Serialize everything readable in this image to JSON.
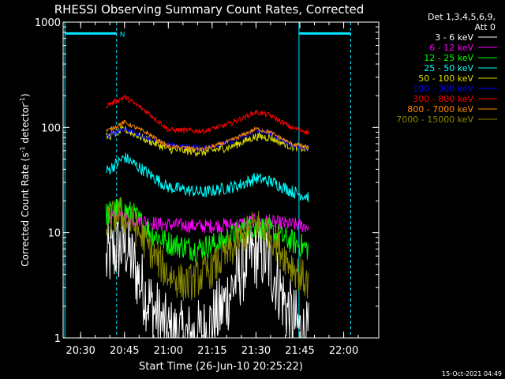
{
  "chart_data": {
    "type": "line",
    "title": "RHESSI Observing Summary Count Rates, Corrected",
    "xlabel": "Start Time (26-Jun-10 20:25:22)",
    "ylabel_main": "Corrected Count Rate (s",
    "ylabel_sup1": "-1",
    "ylabel_mid": " detector",
    "ylabel_sup2": "-1",
    "ylabel_end": ")",
    "y_scale": "log",
    "ylim": [
      1,
      1000
    ],
    "xlim_minutes": [
      20.4,
      22.2
    ],
    "x_ticks": [
      {
        "label": "20:30",
        "value": 20.5
      },
      {
        "label": "20:45",
        "value": 20.75
      },
      {
        "label": "21:00",
        "value": 21.0
      },
      {
        "label": "21:15",
        "value": 21.25
      },
      {
        "label": "21:30",
        "value": 21.5
      },
      {
        "label": "21:45",
        "value": 21.75
      },
      {
        "label": "22:00",
        "value": 22.0
      }
    ],
    "y_ticks": [
      {
        "label": "1",
        "value": 1
      },
      {
        "label": "10",
        "value": 10
      },
      {
        "label": "100",
        "value": 100
      },
      {
        "label": "1000",
        "value": 1000
      }
    ],
    "legend_header": [
      "Det 1,3,4,5,6,9,",
      "Att 0"
    ],
    "legend_placement": "right",
    "series": [
      {
        "name": "3 - 6 keV",
        "color": "#ffffff",
        "knots": [
          [
            20.645,
            5
          ],
          [
            20.66,
            6
          ],
          [
            20.71,
            7
          ],
          [
            20.76,
            7.5
          ],
          [
            20.8,
            5
          ],
          [
            20.86,
            2.8
          ],
          [
            20.92,
            1.8
          ],
          [
            21.0,
            1.1
          ],
          [
            21.1,
            1.0
          ],
          [
            21.2,
            1.1
          ],
          [
            21.3,
            1.8
          ],
          [
            21.4,
            4
          ],
          [
            21.48,
            6.5
          ],
          [
            21.55,
            6
          ],
          [
            21.62,
            3.5
          ],
          [
            21.68,
            1.8
          ],
          [
            21.76,
            1.1
          ],
          [
            21.8,
            1.0
          ]
        ],
        "noise": 0.35
      },
      {
        "name": "6 - 12 keV",
        "color": "#ff00ff",
        "knots": [
          [
            20.645,
            13
          ],
          [
            20.7,
            15
          ],
          [
            20.8,
            13.5
          ],
          [
            20.95,
            12
          ],
          [
            21.2,
            11.5
          ],
          [
            21.4,
            12
          ],
          [
            21.5,
            13
          ],
          [
            21.6,
            12.5
          ],
          [
            21.8,
            11.5
          ]
        ],
        "noise": 0.07
      },
      {
        "name": "12 - 25 keV",
        "color": "#00ff00",
        "knots": [
          [
            20.645,
            15
          ],
          [
            20.72,
            17
          ],
          [
            20.8,
            15
          ],
          [
            20.9,
            10
          ],
          [
            21.0,
            8
          ],
          [
            21.15,
            7
          ],
          [
            21.3,
            8
          ],
          [
            21.45,
            11.5
          ],
          [
            21.55,
            11
          ],
          [
            21.65,
            9
          ],
          [
            21.8,
            7
          ]
        ],
        "noise": 0.12
      },
      {
        "name": "25 - 50 keV",
        "color": "#00ffff",
        "knots": [
          [
            20.645,
            38
          ],
          [
            20.75,
            52
          ],
          [
            20.85,
            40
          ],
          [
            21.0,
            27
          ],
          [
            21.2,
            24
          ],
          [
            21.4,
            28
          ],
          [
            21.5,
            33
          ],
          [
            21.6,
            30
          ],
          [
            21.72,
            24
          ],
          [
            21.8,
            22
          ]
        ],
        "noise": 0.06
      },
      {
        "name": "50 - 100 keV",
        "color": "#dddd00",
        "knots": [
          [
            20.645,
            80
          ],
          [
            20.75,
            96
          ],
          [
            20.88,
            76
          ],
          [
            21.0,
            62
          ],
          [
            21.2,
            58
          ],
          [
            21.35,
            65
          ],
          [
            21.5,
            82
          ],
          [
            21.58,
            80
          ],
          [
            21.7,
            66
          ],
          [
            21.8,
            62
          ]
        ],
        "noise": 0.04
      },
      {
        "name": "100 - 300 keV",
        "color": "#0000ff",
        "knots": [
          [
            20.645,
            82
          ],
          [
            20.75,
            97
          ],
          [
            20.88,
            80
          ],
          [
            21.0,
            68
          ],
          [
            21.2,
            64
          ],
          [
            21.35,
            72
          ],
          [
            21.5,
            93
          ],
          [
            21.58,
            88
          ],
          [
            21.7,
            68
          ],
          [
            21.8,
            63
          ]
        ],
        "noise": 0.025
      },
      {
        "name": "300 - 800 keV",
        "color": "#ff0000",
        "knots": [
          [
            20.645,
            160
          ],
          [
            20.75,
            195
          ],
          [
            20.88,
            140
          ],
          [
            21.0,
            95
          ],
          [
            21.2,
            92
          ],
          [
            21.35,
            108
          ],
          [
            21.5,
            140
          ],
          [
            21.58,
            130
          ],
          [
            21.7,
            100
          ],
          [
            21.8,
            90
          ]
        ],
        "noise": 0.025
      },
      {
        "name": "800 - 7000 keV",
        "color": "#ff8800",
        "knots": [
          [
            20.645,
            92
          ],
          [
            20.75,
            112
          ],
          [
            20.88,
            88
          ],
          [
            21.0,
            66
          ],
          [
            21.2,
            62
          ],
          [
            21.35,
            74
          ],
          [
            21.5,
            97
          ],
          [
            21.58,
            90
          ],
          [
            21.7,
            70
          ],
          [
            21.8,
            64
          ]
        ],
        "noise": 0.02
      },
      {
        "name": "7000 - 15000 keV",
        "color": "#888800",
        "knots": [
          [
            20.645,
            12
          ],
          [
            20.72,
            15
          ],
          [
            20.8,
            12
          ],
          [
            20.92,
            6
          ],
          [
            21.0,
            4
          ],
          [
            21.1,
            3.2
          ],
          [
            21.25,
            4.5
          ],
          [
            21.4,
            8
          ],
          [
            21.5,
            12
          ],
          [
            21.58,
            10
          ],
          [
            21.68,
            5.5
          ],
          [
            21.8,
            3.2
          ]
        ],
        "noise": 0.18
      }
    ],
    "markers": {
      "n_label": "N",
      "solid_lines": [
        20.41,
        21.745
      ],
      "dashed_lines": [
        20.705,
        22.04
      ],
      "bars": [
        [
          20.41,
          20.705
        ],
        [
          21.745,
          22.04
        ]
      ],
      "bar_value": 780
    },
    "footer_date": "15-Oct-2021 04:49"
  }
}
